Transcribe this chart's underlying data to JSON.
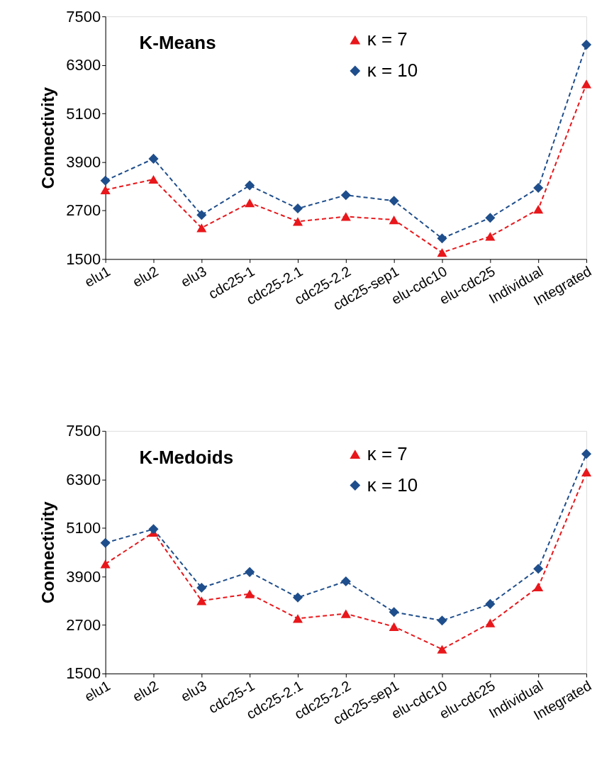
{
  "chart_data": [
    {
      "type": "line",
      "title": "K-Means",
      "ylabel": "Connectivity",
      "categories": [
        "elu1",
        "elu2",
        "elu3",
        "cdc25-1",
        "cdc25-2.1",
        "cdc25-2.2",
        "cdc25-sep1",
        "elu-cdc10",
        "elu-cdc25",
        "Individual",
        "Integrated"
      ],
      "series": [
        {
          "name": "κ = 7",
          "color": "#e8171b",
          "marker": "triangle",
          "values": [
            3210,
            3470,
            2270,
            2890,
            2430,
            2550,
            2470,
            1660,
            2060,
            2730,
            5830
          ]
        },
        {
          "name": "κ = 10",
          "color": "#1f4e8c",
          "marker": "diamond",
          "values": [
            3440,
            3980,
            2590,
            3320,
            2750,
            3080,
            2940,
            2010,
            2520,
            3260,
            6800
          ]
        }
      ],
      "ylim": [
        1500,
        7500
      ],
      "yticks": [
        1500,
        2700,
        3900,
        5100,
        6300,
        7500
      ],
      "grid": false,
      "legend": "top right",
      "line_style": "dashed"
    },
    {
      "type": "line",
      "title": "K-Medoids",
      "ylabel": "Connectivity",
      "categories": [
        "elu1",
        "elu2",
        "elu3",
        "cdc25-1",
        "cdc25-2.1",
        "cdc25-2.2",
        "cdc25-sep1",
        "elu-cdc10",
        "elu-cdc25",
        "Individual",
        "Integrated"
      ],
      "series": [
        {
          "name": "κ = 7",
          "color": "#e8171b",
          "marker": "triangle",
          "values": [
            4210,
            4990,
            3300,
            3470,
            2860,
            2980,
            2660,
            2100,
            2750,
            3640,
            6480
          ]
        },
        {
          "name": "κ = 10",
          "color": "#1f4e8c",
          "marker": "diamond",
          "values": [
            4730,
            5070,
            3620,
            4010,
            3380,
            3780,
            3020,
            2810,
            3220,
            4090,
            6930
          ]
        }
      ],
      "ylim": [
        1500,
        7500
      ],
      "yticks": [
        1500,
        2700,
        3900,
        5100,
        6300,
        7500
      ],
      "grid": false,
      "legend": "top right",
      "line_style": "dashed"
    }
  ]
}
